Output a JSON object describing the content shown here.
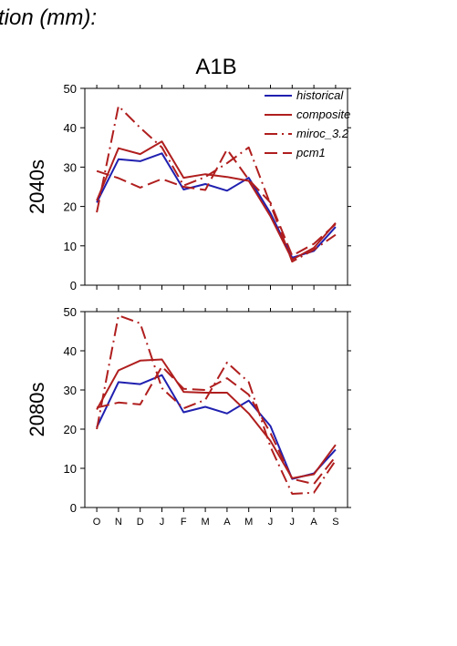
{
  "figure": {
    "heading": "tion (mm):",
    "scenario": "A1B"
  },
  "colors": {
    "historical": "#2020b0",
    "composite": "#b01e1e",
    "miroc_3.2": "#b01e1e",
    "pcm1": "#b01e1e"
  },
  "chart_data": [
    {
      "type": "line",
      "panel_label": "2040s",
      "categories": [
        "O",
        "N",
        "D",
        "J",
        "F",
        "M",
        "A",
        "M",
        "J",
        "J",
        "A",
        "S"
      ],
      "ylim": [
        0,
        50
      ],
      "yticks": [
        "0",
        "10",
        "20",
        "30",
        "40",
        "50"
      ],
      "grid": false,
      "legend_placement": "top-right",
      "series": [
        {
          "name": "historical",
          "style": "solid",
          "values": [
            21,
            32,
            31.5,
            33.5,
            24.3,
            25.7,
            24,
            27.3,
            18.3,
            7,
            8.7,
            14.8
          ]
        },
        {
          "name": "composite",
          "style": "solid",
          "values": [
            21.5,
            34.8,
            33.3,
            36.5,
            27.3,
            28.2,
            27.5,
            26.5,
            17.5,
            6.5,
            9.5,
            15.8
          ]
        },
        {
          "name": "miroc_3.2",
          "style": "dash-dot",
          "values": [
            18.5,
            45.5,
            40,
            35,
            25.3,
            27.5,
            31,
            35,
            20.5,
            6,
            9,
            12.8
          ]
        },
        {
          "name": "pcm1",
          "style": "long-dash",
          "values": [
            29,
            27.2,
            24.8,
            27,
            25,
            24.2,
            34.5,
            26.8,
            21,
            7.5,
            10.5,
            15.5
          ]
        }
      ]
    },
    {
      "type": "line",
      "panel_label": "2080s",
      "categories": [
        "O",
        "N",
        "D",
        "J",
        "F",
        "M",
        "A",
        "M",
        "J",
        "J",
        "A",
        "S"
      ],
      "xticklabels": [
        "O",
        "N",
        "D",
        "J",
        "F",
        "M",
        "A",
        "M",
        "J",
        "J",
        "A",
        "S"
      ],
      "ylim": [
        0,
        50
      ],
      "yticks": [
        "0",
        "10",
        "20",
        "30",
        "40",
        "50"
      ],
      "grid": false,
      "series": [
        {
          "name": "historical",
          "style": "solid",
          "values": [
            20.5,
            32,
            31.5,
            33.8,
            24.3,
            25.7,
            24,
            27.3,
            20.8,
            7.3,
            8.7,
            14.8
          ]
        },
        {
          "name": "composite",
          "style": "solid",
          "values": [
            25,
            35,
            37.5,
            37.8,
            29.5,
            29.3,
            29.3,
            24,
            17,
            7.5,
            8.5,
            16
          ]
        },
        {
          "name": "miroc_3.2",
          "style": "dash-dot",
          "values": [
            20,
            49,
            47,
            30.5,
            25.3,
            27.5,
            37,
            32,
            15.5,
            3.5,
            3.8,
            12
          ]
        },
        {
          "name": "pcm1",
          "style": "long-dash",
          "values": [
            25.5,
            26.8,
            26.3,
            36,
            30.3,
            30,
            33,
            28.8,
            19,
            7.3,
            6,
            13
          ]
        }
      ]
    }
  ]
}
